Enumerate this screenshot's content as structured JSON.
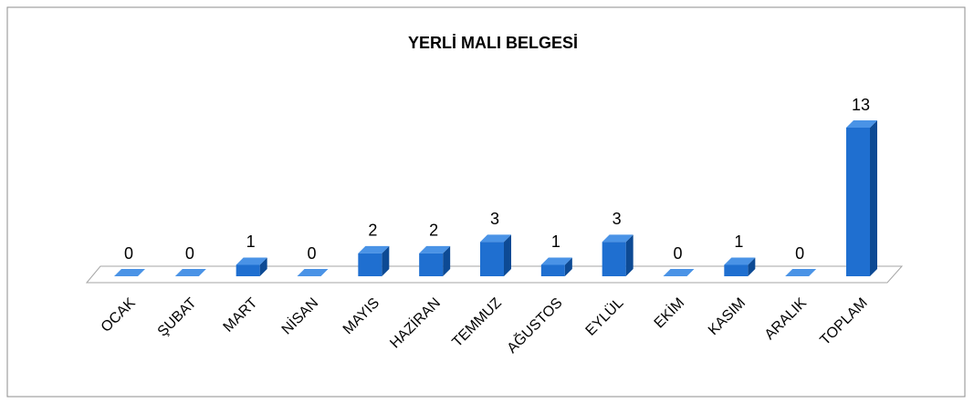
{
  "chart_data": {
    "type": "bar3d",
    "title": "YERLİ MALI BELGESİ",
    "categories": [
      "OCAK",
      "ŞUBAT",
      "MART",
      "NİSAN",
      "MAYIS",
      "HAZİRAN",
      "TEMMUZ",
      "AĞUSTOS",
      "EYLÜL",
      "EKİM",
      "KASIM",
      "ARALIK",
      "TOPLAM"
    ],
    "values": [
      0,
      0,
      1,
      0,
      2,
      2,
      3,
      1,
      3,
      0,
      1,
      0,
      13
    ],
    "color": "#1f6fd0"
  }
}
